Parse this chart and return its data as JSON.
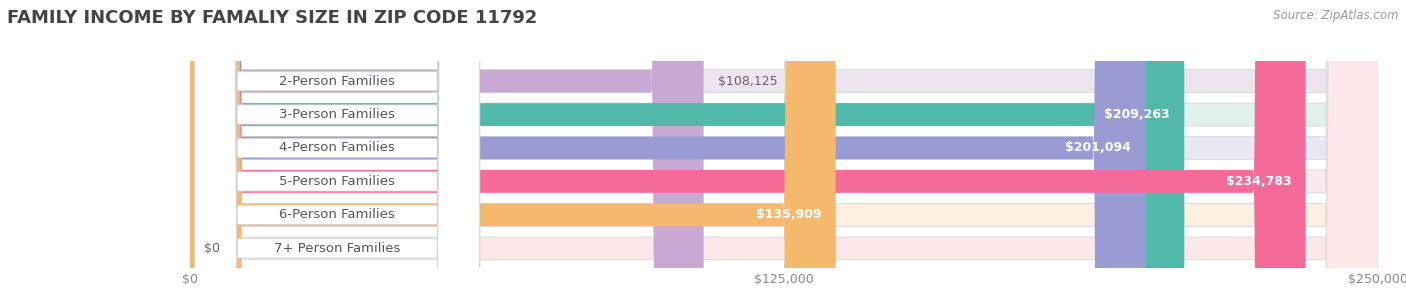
{
  "title": "FAMILY INCOME BY FAMALIY SIZE IN ZIP CODE 11792",
  "source": "Source: ZipAtlas.com",
  "categories": [
    "2-Person Families",
    "3-Person Families",
    "4-Person Families",
    "5-Person Families",
    "6-Person Families",
    "7+ Person Families"
  ],
  "values": [
    108125,
    209263,
    201094,
    234783,
    135909,
    0
  ],
  "bar_colors": [
    "#c9a8d4",
    "#52b8aa",
    "#9b9bd4",
    "#f46b9a",
    "#f5b96e",
    "#f5a8a8"
  ],
  "bar_bg_colors": [
    "#ece5f0",
    "#e0f0ec",
    "#e8e8f5",
    "#fce8ef",
    "#fef0e0",
    "#fce8e8"
  ],
  "value_colors_inside": [
    "#555555",
    "#ffffff",
    "#ffffff",
    "#ffffff",
    "#555555",
    "#555555"
  ],
  "xlim": [
    0,
    250000
  ],
  "xticks": [
    0,
    125000,
    250000
  ],
  "xtick_labels": [
    "$0",
    "$125,000",
    "$250,000"
  ],
  "background_color": "#ffffff",
  "plot_bg_color": "#f7f7f7",
  "title_fontsize": 13,
  "label_fontsize": 9.5,
  "value_fontsize": 9
}
